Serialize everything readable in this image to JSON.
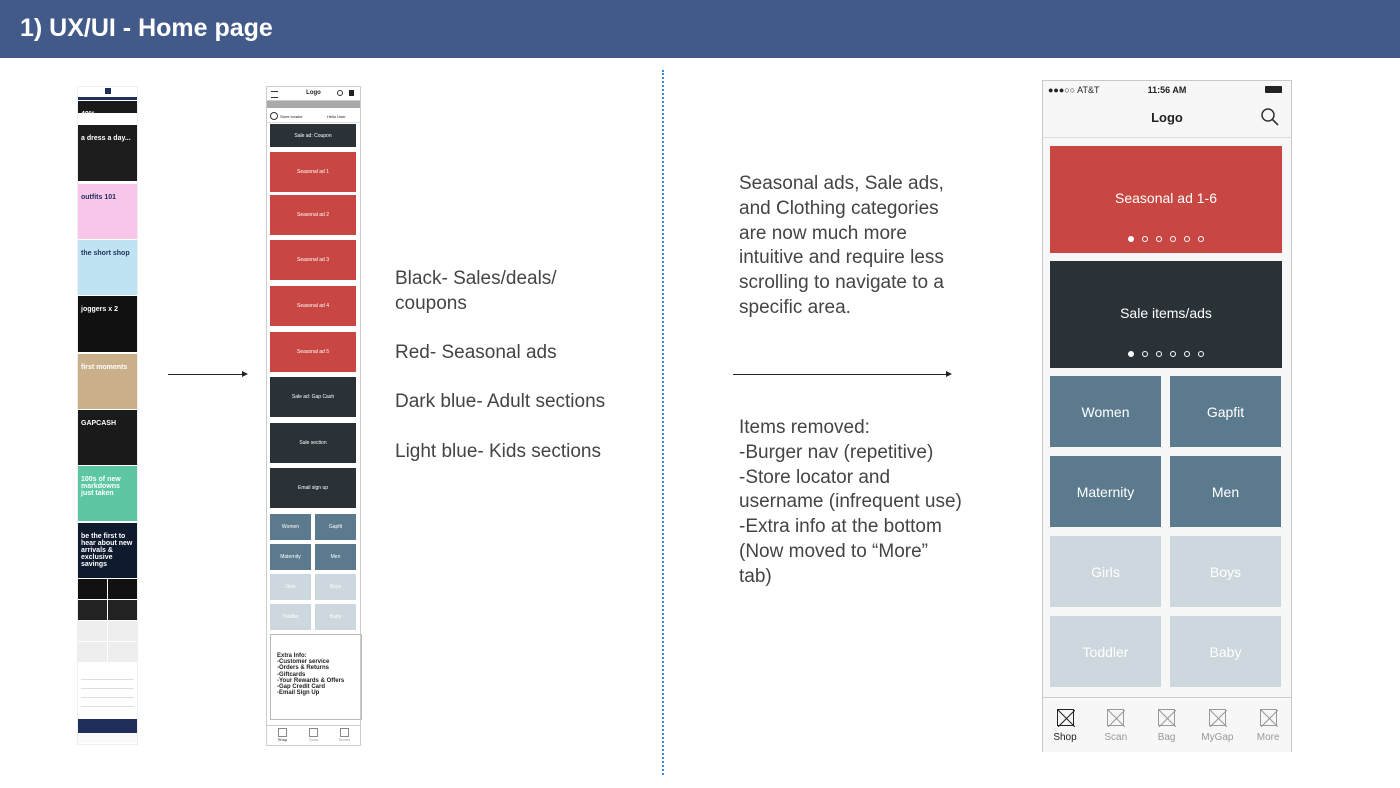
{
  "header": {
    "title": "1) UX/UI - Home page"
  },
  "strip": {
    "tiles": [
      {
        "text": "40%",
        "bg": "#1a1a1a"
      },
      {
        "text": "a dress a day...",
        "bg": "#1d1d1d"
      },
      {
        "text": "outfits 101",
        "bg": "#f7c6e8"
      },
      {
        "text": "the short shop",
        "bg": "#bfe3f2"
      },
      {
        "text": "joggers x 2",
        "bg": "#111111"
      },
      {
        "text": "first moments",
        "bg": "#c9b08a"
      },
      {
        "text": "GAPCASH",
        "bg": "#1a1a1a"
      },
      {
        "text": "100s of new markdowns just taken",
        "bg": "#5dc7a4"
      },
      {
        "text": "be the first to hear about new arrivals & exclusive savings",
        "bg": "#0f1a2e"
      }
    ]
  },
  "wireframe": {
    "logo": "Logo",
    "promo_bar": "Shipping discount info",
    "store_locator": "Store locator",
    "hello_user": "Hello User",
    "blocks": [
      {
        "label": "Sale ad: Coupon",
        "color": "#2b3237"
      },
      {
        "label": "Seasonal ad 1",
        "color": "#c94743"
      },
      {
        "label": "Seasonal ad 2",
        "color": "#c94743"
      },
      {
        "label": "Seasonal ad 3",
        "color": "#c94743"
      },
      {
        "label": "Seasonal ad 4",
        "color": "#c94743"
      },
      {
        "label": "Seasonal ad 5",
        "color": "#c94743"
      },
      {
        "label": "Sale ad: Gap Cash",
        "color": "#2b3237"
      },
      {
        "label": "Sale section",
        "color": "#2b3237"
      },
      {
        "label": "Email sign up",
        "color": "#2b3237"
      }
    ],
    "categories": [
      "Women",
      "Gapfit",
      "Maternity",
      "Men",
      "Girls",
      "Boys",
      "Toddler",
      "Baby"
    ],
    "extra_info": [
      "Extra Info:",
      "-Customer service",
      "-Orders & Returns",
      "-Giftcards",
      "-Your Rewards & Offers",
      "-Gap Credit Card",
      "-Email Sign Up"
    ],
    "tabs": [
      "Shop",
      "Scan",
      "Stores"
    ]
  },
  "legend": {
    "black_line1": "Black- Sales/deals/",
    "black_line2": "coupons",
    "red": "Red- Seasonal ads",
    "dark_blue": "Dark blue- Adult sections",
    "light_blue": "Light blue- Kids sections"
  },
  "description": {
    "top": [
      "Seasonal ads, Sale ads,",
      "and Clothing categories",
      "are now much more",
      "intuitive and require less",
      "scrolling to navigate to a",
      "specific area."
    ],
    "bottom": [
      "Items removed:",
      "-Burger nav (repetitive)",
      "-Store locator and",
      "username (infrequent use)",
      "-Extra info at the bottom",
      "(Now moved to “More”",
      "tab)"
    ]
  },
  "phone": {
    "carrier": "●●●○○ AT&T",
    "time": "11:56 AM",
    "logo": "Logo",
    "seasonal": "Seasonal ad 1-6",
    "sale": "Sale items/ads",
    "categories": [
      "Women",
      "Gapfit",
      "Maternity",
      "Men",
      "Girls",
      "Boys",
      "Toddler",
      "Baby"
    ],
    "tabs": [
      "Shop",
      "Scan",
      "Bag",
      "MyGap",
      "More"
    ],
    "colors": {
      "red": "#c94743",
      "dark": "#2b3237",
      "adult": "#5b7a8e",
      "kids": "#cdd8de"
    }
  }
}
